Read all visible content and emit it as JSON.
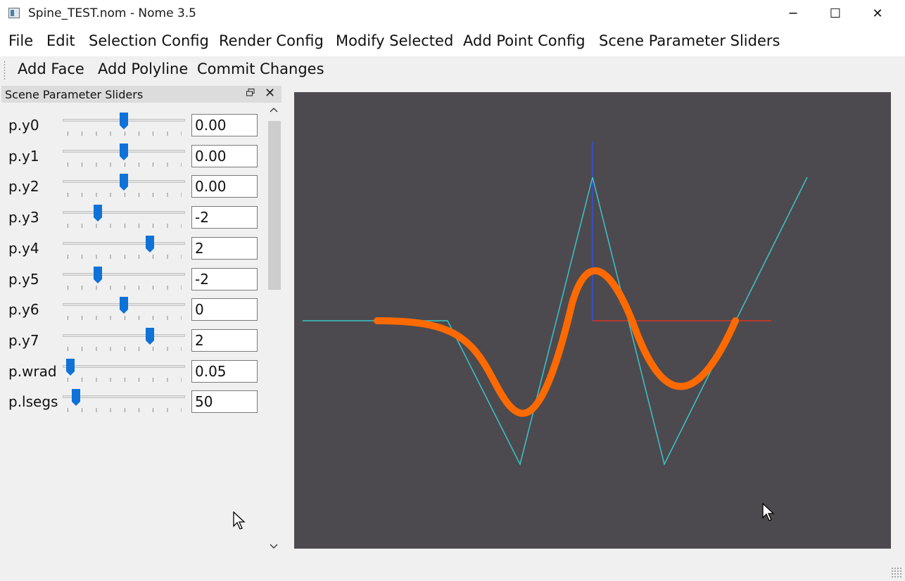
{
  "window": {
    "title": "Spine_TEST.nom - Nome 3.5",
    "minimize_icon": "─",
    "maximize_icon": "☐",
    "close_icon": "✕"
  },
  "menu": [
    "File",
    "Edit",
    "Selection Config",
    "Render Config",
    "Modify Selected",
    "Add Point Config",
    "Scene Parameter Sliders"
  ],
  "toolbar": [
    "Add Face",
    "Add Polyline",
    "Commit Changes"
  ],
  "dock": {
    "title": "Scene Parameter Sliders",
    "close_icon": "✕",
    "params": [
      {
        "label": "p.y0",
        "value": "0.00",
        "level": 0.5
      },
      {
        "label": "p.y1",
        "value": "0.00",
        "level": 0.5
      },
      {
        "label": "p.y2",
        "value": "0.00",
        "level": 0.5
      },
      {
        "label": "p.y3",
        "value": "-2",
        "level": 0.27
      },
      {
        "label": "p.y4",
        "value": "2",
        "level": 0.73
      },
      {
        "label": "p.y5",
        "value": "-2",
        "level": 0.27
      },
      {
        "label": "p.y6",
        "value": "0",
        "level": 0.5
      },
      {
        "label": "p.y7",
        "value": "2",
        "level": 0.73
      },
      {
        "label": "p.wrad",
        "value": "0.05",
        "level": 0.03
      },
      {
        "label": "p.lsegs",
        "value": "50",
        "level": 0.08
      }
    ],
    "scroll_up_icon": "▲",
    "scroll_down_icon": "▼"
  },
  "viewport": {
    "background": "#4c4a4f",
    "control_polygon_color": "#39c6c7",
    "curve_color": "#ff6a00",
    "x_axis_color": "#b83a2a",
    "y_axis_color": "#3a4fb8"
  },
  "colors": {
    "slider_handle": "#0f72d8",
    "window_bg": "#f0f0f0"
  }
}
